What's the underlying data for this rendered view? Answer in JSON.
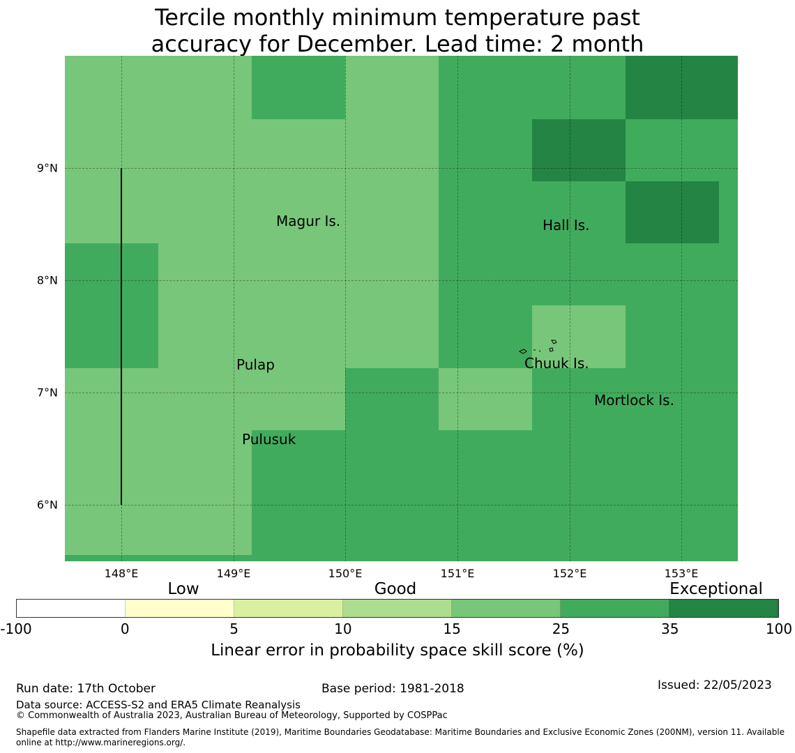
{
  "title_line1": "Tercile monthly minimum temperature past",
  "title_line2": "accuracy for December. Lead time: 2 month",
  "map": {
    "lat_labels": [
      "9°N",
      "8°N",
      "7°N",
      "6°N"
    ],
    "lon_labels": [
      "148°E",
      "149°E",
      "150°E",
      "151°E",
      "152°E",
      "153°E"
    ],
    "places": [
      "Magur Is.",
      "Hall Is.",
      "Pulap",
      "Chuuk Is.",
      "Mortlock Is.",
      "Pulusuk"
    ],
    "category_colors": {
      "L": "#78c679",
      "M": "#41ab5d",
      "D": "#238443"
    },
    "cell_grid": [
      "LLMLMMDD",
      "LLLLMDMM",
      "LLLLMMDM",
      "MLLLMMMM",
      "MLLLMLMM",
      "LLLMLMMM",
      "LLMMMMMM",
      "LLMMMMMM",
      "MMMMMMMM"
    ]
  },
  "colorbar": {
    "colors": [
      "#ffffff",
      "#ffffcc",
      "#d9f0a3",
      "#addd8e",
      "#78c679",
      "#41ab5d",
      "#238443"
    ],
    "ticks": [
      "-100",
      "0",
      "5",
      "10",
      "15",
      "25",
      "35",
      "100"
    ],
    "categories": [
      "Low",
      "Good",
      "Exceptional"
    ],
    "label": "Linear error in probability space skill score (%)"
  },
  "footer": {
    "run_date": "Run date: 17th October",
    "base_period": "Base period: 1981-2018",
    "issued": "Issued: 22/05/2023",
    "data_source": "Data source: ACCESS-S2 and ERA5 Climate Reanalysis",
    "copyright": "© Commonwealth of Australia 2023, Australian Bureau of Meteorology, Supported by COSPPac",
    "shapefile": "Shapefile data extracted from Flanders Marine Institute (2019), Maritime Boundaries Geodatabase: Maritime Boundaries and Exclusive Economic Zones (200NM), version 11. Available online at http://www.marineregions.org/."
  }
}
